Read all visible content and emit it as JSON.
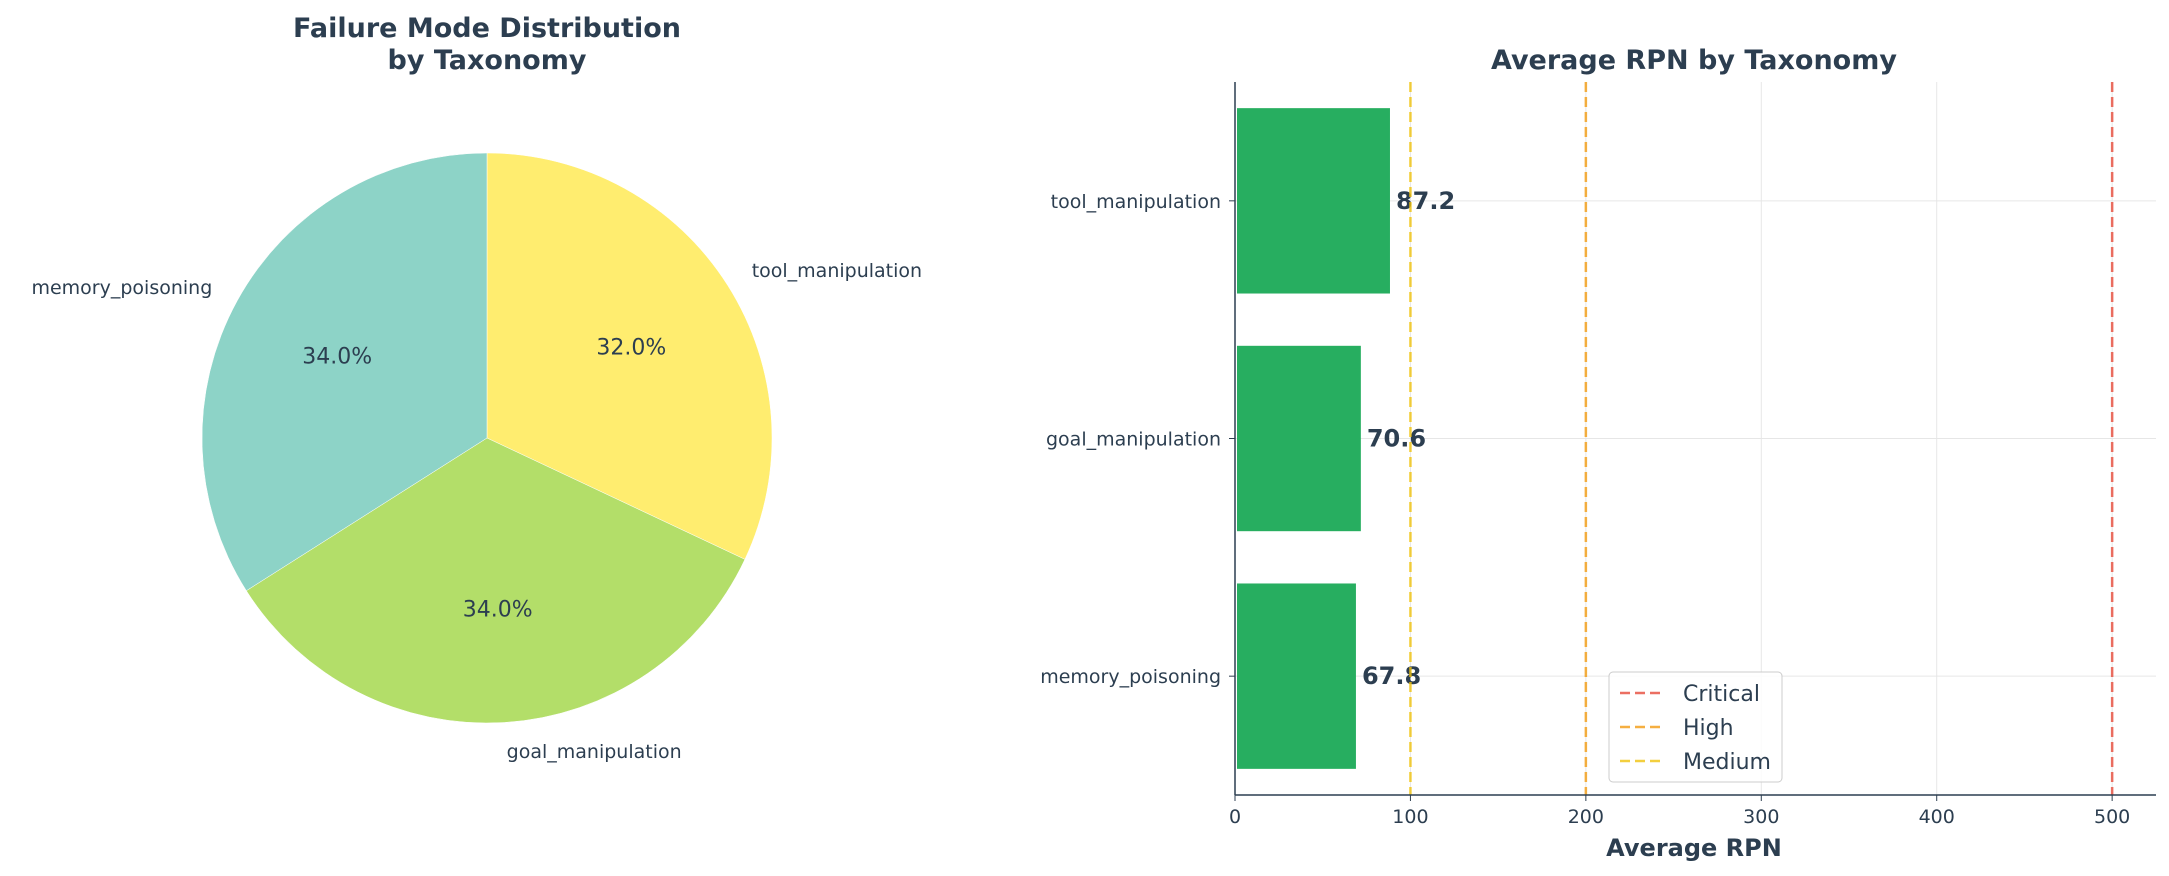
{
  "chart_data": [
    {
      "type": "pie",
      "title": "Failure Mode Distribution\nby Taxonomy",
      "title_lines": [
        "Failure Mode Distribution",
        "by Taxonomy"
      ],
      "slices": [
        {
          "label": "tool_manipulation",
          "value": 32.0,
          "pct_label": "32.0%",
          "color": "#ffed6f"
        },
        {
          "label": "goal_manipulation",
          "value": 34.0,
          "pct_label": "34.0%",
          "color": "#b3de69"
        },
        {
          "label": "memory_poisoning",
          "value": 34.0,
          "pct_label": "34.0%",
          "color": "#8dd3c7"
        }
      ],
      "start_angle_deg": 90,
      "direction": "clockwise"
    },
    {
      "type": "bar",
      "orientation": "horizontal",
      "title": "Average RPN by Taxonomy",
      "xlabel": "Average RPN",
      "ylabel": "",
      "xlim": [
        0,
        525
      ],
      "xticks": [
        0,
        100,
        200,
        300,
        400,
        500
      ],
      "categories": [
        "memory_poisoning",
        "goal_manipulation",
        "tool_manipulation"
      ],
      "values": [
        67.8,
        70.6,
        87.2
      ],
      "value_labels": [
        "67.8",
        "70.6",
        "87.2"
      ],
      "bar_color": "#27ae60",
      "grid": true,
      "thresholds": [
        {
          "name": "Critical",
          "value": 500,
          "color": "#e74c3c"
        },
        {
          "name": "High",
          "value": 200,
          "color": "#f39c12"
        },
        {
          "name": "Medium",
          "value": 100,
          "color": "#f1c40f"
        }
      ],
      "legend_position": "lower-center"
    }
  ]
}
